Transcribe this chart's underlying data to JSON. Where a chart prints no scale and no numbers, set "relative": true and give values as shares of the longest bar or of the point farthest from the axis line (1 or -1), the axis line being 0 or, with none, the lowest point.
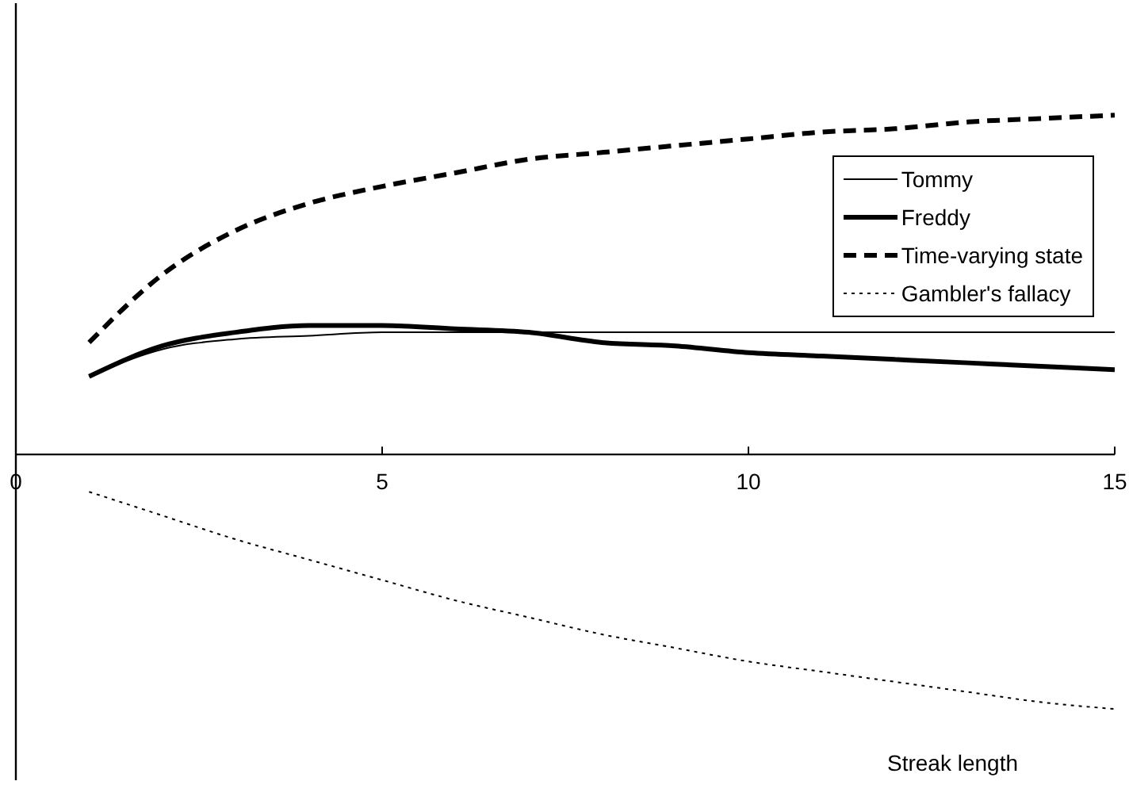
{
  "chart_data": {
    "type": "line",
    "relative": true,
    "xlabel": "Streak length",
    "x": [
      1,
      2,
      3,
      4,
      5,
      6,
      7,
      8,
      9,
      10,
      11,
      12,
      13,
      14,
      15
    ],
    "xlim": [
      0,
      15
    ],
    "xticks": [
      0,
      5,
      10,
      15
    ],
    "grid": false,
    "legend": "top right",
    "marker": "none",
    "series": [
      {
        "name": "Tommy",
        "color": "#000000",
        "line_style": "solid",
        "values": [
          0.23,
          0.31,
          0.34,
          0.35,
          0.36,
          0.36,
          0.36,
          0.36,
          0.36,
          0.36,
          0.36,
          0.36,
          0.36,
          0.36,
          0.36
        ]
      },
      {
        "name": "Freddy",
        "color": "#000000",
        "line_style": "solid",
        "values": [
          0.23,
          0.32,
          0.36,
          0.38,
          0.38,
          0.37,
          0.36,
          0.33,
          0.32,
          0.3,
          0.29,
          0.28,
          0.27,
          0.26,
          0.25
        ]
      },
      {
        "name": "Time-varying state",
        "color": "#000000",
        "line_style": "dashed",
        "values": [
          0.33,
          0.53,
          0.66,
          0.74,
          0.79,
          0.83,
          0.87,
          0.89,
          0.91,
          0.93,
          0.95,
          0.96,
          0.98,
          0.99,
          1
        ]
      },
      {
        "name": "Gambler's fallacy",
        "color": "#000000",
        "line_style": "dotted",
        "values": [
          -0.11,
          -0.18,
          -0.25,
          -0.31,
          -0.37,
          -0.43,
          -0.48,
          -0.53,
          -0.57,
          -0.61,
          -0.64,
          -0.67,
          -0.7,
          -0.73,
          -0.75
        ]
      }
    ]
  }
}
